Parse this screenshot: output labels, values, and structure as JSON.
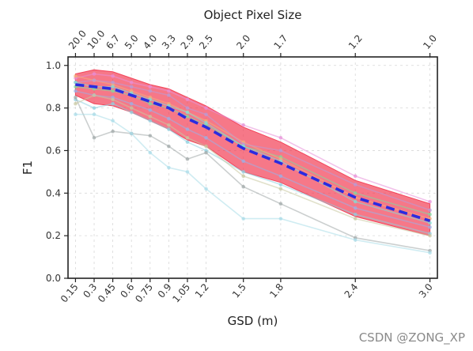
{
  "chart_data": {
    "type": "line",
    "title": "Object Pixel Size",
    "xlabel": "GSD (m)",
    "ylabel": "F1",
    "x": [
      0.15,
      0.3,
      0.45,
      0.6,
      0.75,
      0.9,
      1.05,
      1.2,
      1.5,
      1.8,
      2.4,
      3.0
    ],
    "x_tick_labels": [
      "0.15",
      "0.3",
      "0.45",
      "0.6",
      "0.75",
      "0.9",
      "1.05",
      "1.2",
      "1.5",
      "1.8",
      "2.4",
      "3.0"
    ],
    "top_axis_tick_labels": [
      "20.0",
      "10.0",
      "6.7",
      "5.0",
      "4.0",
      "3.3",
      "2.9",
      "2.5",
      "2.0",
      "1.7",
      "1.2",
      "1.0"
    ],
    "y_ticks": [
      0.0,
      0.2,
      0.4,
      0.6,
      0.8,
      1.0
    ],
    "y_tick_labels": [
      "0.0",
      "0.2",
      "0.4",
      "0.6",
      "0.8",
      "1.0"
    ],
    "xlim": [
      0.09,
      3.06
    ],
    "ylim": [
      0.0,
      1.04
    ],
    "grid": true,
    "series": [
      {
        "values": [
          0.9,
          0.89,
          0.88,
          0.86,
          0.82,
          0.8,
          0.76,
          0.72,
          0.62,
          0.57,
          0.4,
          0.3
        ],
        "color": "#7fdca0"
      },
      {
        "values": [
          0.94,
          0.96,
          0.95,
          0.92,
          0.9,
          0.88,
          0.84,
          0.8,
          0.72,
          0.66,
          0.48,
          0.36
        ],
        "color": "#e88fd8"
      },
      {
        "values": [
          0.88,
          0.86,
          0.85,
          0.82,
          0.79,
          0.75,
          0.7,
          0.66,
          0.55,
          0.48,
          0.33,
          0.24
        ],
        "color": "#9ab0e8"
      },
      {
        "values": [
          0.95,
          0.93,
          0.91,
          0.88,
          0.85,
          0.82,
          0.78,
          0.74,
          0.64,
          0.56,
          0.38,
          0.28
        ],
        "color": "#f4b07a"
      },
      {
        "values": [
          0.92,
          0.93,
          0.92,
          0.9,
          0.88,
          0.86,
          0.8,
          0.77,
          0.63,
          0.6,
          0.44,
          0.32
        ],
        "color": "#b89cd8"
      },
      {
        "values": [
          0.84,
          0.8,
          0.82,
          0.78,
          0.74,
          0.7,
          0.64,
          0.6,
          0.5,
          0.44,
          0.3,
          0.21
        ],
        "color": "#90d0e0"
      },
      {
        "values": [
          0.85,
          0.66,
          0.69,
          0.68,
          0.67,
          0.62,
          0.56,
          0.59,
          0.43,
          0.35,
          0.19,
          0.13
        ],
        "color": "#a0a8a8"
      },
      {
        "values": [
          0.77,
          0.77,
          0.74,
          0.68,
          0.59,
          0.52,
          0.5,
          0.42,
          0.28,
          0.28,
          0.18,
          0.12
        ],
        "color": "#a8dce8"
      },
      {
        "values": [
          0.82,
          0.86,
          0.84,
          0.8,
          0.76,
          0.72,
          0.66,
          0.62,
          0.48,
          0.42,
          0.28,
          0.2
        ],
        "color": "#c8c8a0"
      },
      {
        "values": [
          0.92,
          0.9,
          0.9,
          0.87,
          0.84,
          0.81,
          0.78,
          0.73,
          0.62,
          0.55,
          0.36,
          0.26
        ],
        "color": "#7fe0d8"
      }
    ],
    "band": {
      "upper": [
        0.96,
        0.98,
        0.97,
        0.94,
        0.91,
        0.89,
        0.85,
        0.81,
        0.71,
        0.64,
        0.46,
        0.35
      ],
      "lower": [
        0.86,
        0.82,
        0.81,
        0.78,
        0.74,
        0.7,
        0.65,
        0.62,
        0.5,
        0.45,
        0.29,
        0.2
      ],
      "color": "#f23850"
    },
    "mean": {
      "values": [
        0.91,
        0.9,
        0.89,
        0.86,
        0.83,
        0.8,
        0.75,
        0.71,
        0.61,
        0.54,
        0.38,
        0.27
      ],
      "color": "#2b2be0"
    }
  },
  "watermark": "CSDN @ZONG_XP"
}
